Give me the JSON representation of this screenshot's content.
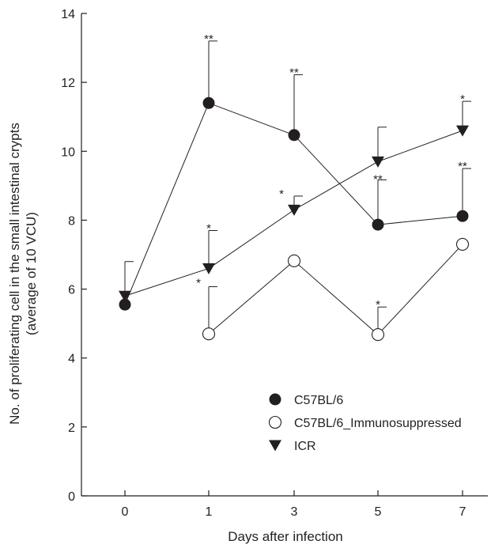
{
  "chart_data": {
    "type": "line",
    "title": "",
    "xlabel": "Days after infection",
    "ylabel_lines": [
      "No. of proliferating cell in the small intestinal crypts",
      "(average of 10 VCU)"
    ],
    "categories": [
      "0",
      "1",
      "3",
      "5",
      "7"
    ],
    "ylim": [
      0,
      14
    ],
    "yticks": [
      0,
      2,
      4,
      6,
      8,
      10,
      12,
      14
    ],
    "yticks_labels": [
      "0",
      "2",
      "4",
      "6",
      "8",
      "10",
      "12",
      "14"
    ],
    "grid": false,
    "legend_position": "lower-right",
    "series": [
      {
        "name": "C57BL/6",
        "marker": "filled-circle",
        "color": "#231f20",
        "values": [
          5.55,
          11.4,
          10.47,
          7.87,
          8.12
        ],
        "errors": [
          null,
          1.8,
          1.75,
          1.3,
          1.38
        ],
        "significance": [
          "",
          "**",
          "**",
          "**",
          "**"
        ]
      },
      {
        "name": "C57BL/6_Immunosuppressed",
        "marker": "open-circle",
        "color": "#231f20",
        "values": [
          null,
          4.7,
          6.82,
          4.68,
          7.3
        ],
        "errors": [
          null,
          1.37,
          null,
          0.8,
          null
        ],
        "significance": [
          "",
          "*",
          "",
          "*",
          ""
        ]
      },
      {
        "name": "ICR",
        "marker": "filled-triangle-down",
        "color": "#231f20",
        "values": [
          5.8,
          6.6,
          8.3,
          9.7,
          10.6
        ],
        "errors": [
          1.0,
          1.1,
          0.4,
          1.0,
          0.85
        ],
        "significance": [
          "",
          "*",
          "*",
          "",
          "*"
        ]
      }
    ]
  }
}
